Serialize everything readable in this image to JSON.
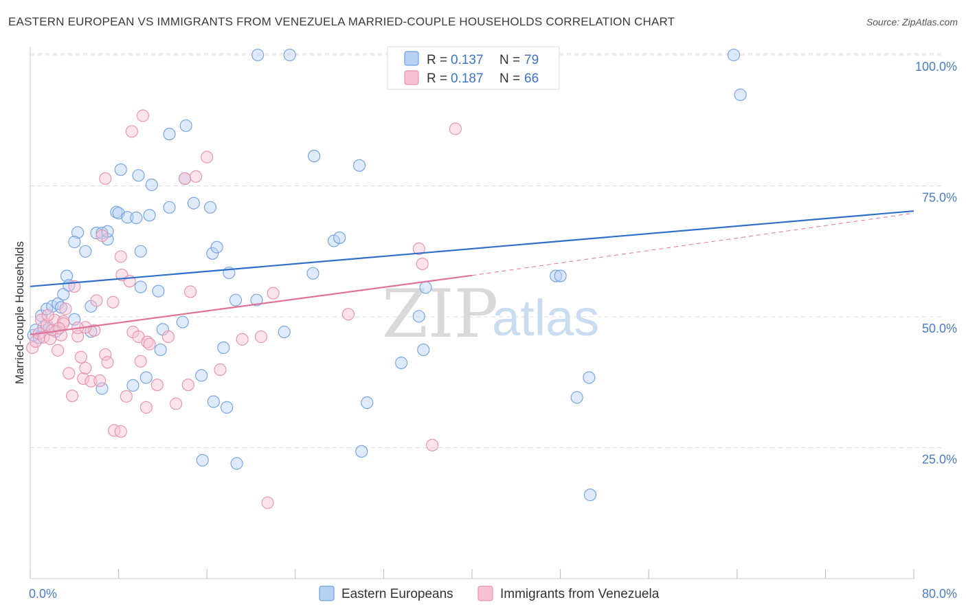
{
  "header": {
    "title": "EASTERN EUROPEAN VS IMMIGRANTS FROM VENEZUELA MARRIED-COUPLE HOUSEHOLDS CORRELATION CHART",
    "source": "Source: ZipAtlas.com"
  },
  "watermark": {
    "zip": "ZIP",
    "atlas": "atlas"
  },
  "colors": {
    "blue": "#6f9fe0",
    "blue_fill": "#b8d0f3",
    "blue_line": "#2f6fc9",
    "pink": "#e890ac",
    "pink_fill": "#f6c2d3",
    "pink_line": "#e0729a",
    "grid": "#dddddd",
    "tick_label": "#4a7cc9"
  },
  "legend": {
    "r_label": "R =",
    "n_label": "N =",
    "series": [
      {
        "r": "0.137",
        "n": "79"
      },
      {
        "r": "0.187",
        "n": "66"
      }
    ]
  },
  "chart_data": {
    "type": "scatter",
    "title": "EASTERN EUROPEAN VS IMMIGRANTS FROM VENEZUELA MARRIED-COUPLE HOUSEHOLDS CORRELATION CHART",
    "xlabel": "",
    "ylabel": "Married-couple Households",
    "xlim": [
      0,
      80
    ],
    "ylim": [
      0,
      102.5
    ],
    "x_tick_labels": [
      "0.0%",
      "80.0%"
    ],
    "y_ticks": [
      25,
      50,
      75,
      100
    ],
    "y_tick_labels": [
      "25.0%",
      "50.0%",
      "75.0%",
      "100.0%"
    ],
    "x_ticks_minor": [
      0,
      8,
      16,
      24,
      32,
      40,
      48,
      56,
      64,
      72,
      80
    ],
    "series": [
      {
        "name": "Eastern Europeans",
        "r": 0.137,
        "n": 79,
        "trend": {
          "x": [
            0,
            80
          ],
          "y": [
            55.8,
            70.2
          ]
        },
        "points": [
          [
            0.3,
            46.5
          ],
          [
            0.5,
            47.5
          ],
          [
            0.8,
            46.0
          ],
          [
            1.0,
            50.2
          ],
          [
            1.2,
            48.0
          ],
          [
            1.5,
            51.5
          ],
          [
            2.0,
            52.0
          ],
          [
            2.5,
            52.5
          ],
          [
            2.8,
            51.8
          ],
          [
            3.0,
            54.3
          ],
          [
            3.3,
            57.8
          ],
          [
            3.5,
            56.0
          ],
          [
            4.0,
            49.5
          ],
          [
            4.3,
            66.1
          ],
          [
            4.0,
            64.3
          ],
          [
            5.0,
            62.5
          ],
          [
            5.5,
            52.0
          ],
          [
            5.5,
            47.2
          ],
          [
            6.0,
            66.0
          ],
          [
            6.5,
            66.0
          ],
          [
            7.0,
            64.8
          ],
          [
            6.5,
            36.3
          ],
          [
            7.0,
            66.3
          ],
          [
            7.8,
            70.0
          ],
          [
            8.0,
            69.8
          ],
          [
            8.2,
            78.1
          ],
          [
            8.8,
            69.0
          ],
          [
            9.3,
            36.9
          ],
          [
            9.6,
            68.9
          ],
          [
            9.8,
            77.0
          ],
          [
            10.0,
            62.5
          ],
          [
            10.0,
            55.7
          ],
          [
            10.5,
            38.4
          ],
          [
            10.8,
            69.4
          ],
          [
            11.0,
            75.2
          ],
          [
            11.6,
            54.9
          ],
          [
            11.8,
            43.7
          ],
          [
            12.0,
            47.6
          ],
          [
            12.6,
            70.9
          ],
          [
            12.6,
            84.9
          ],
          [
            14.0,
            76.4
          ],
          [
            13.8,
            49.0
          ],
          [
            14.1,
            86.5
          ],
          [
            14.8,
            71.7
          ],
          [
            15.5,
            38.8
          ],
          [
            15.6,
            22.6
          ],
          [
            16.3,
            70.9
          ],
          [
            16.5,
            62.1
          ],
          [
            16.9,
            63.3
          ],
          [
            16.6,
            33.8
          ],
          [
            17.5,
            44.1
          ],
          [
            17.8,
            32.7
          ],
          [
            18.0,
            58.4
          ],
          [
            18.7,
            22.0
          ],
          [
            18.6,
            53.2
          ],
          [
            20.5,
            53.2
          ],
          [
            20.6,
            100.0
          ],
          [
            23.0,
            47.1
          ],
          [
            23.5,
            100.0
          ],
          [
            25.7,
            80.7
          ],
          [
            25.6,
            58.3
          ],
          [
            27.5,
            64.5
          ],
          [
            28.0,
            65.1
          ],
          [
            29.8,
            78.9
          ],
          [
            30.0,
            24.3
          ],
          [
            30.5,
            33.6
          ],
          [
            33.6,
            41.2
          ],
          [
            35.2,
            50.1
          ],
          [
            35.6,
            43.7
          ],
          [
            35.8,
            55.6
          ],
          [
            47.6,
            57.8
          ],
          [
            49.5,
            34.6
          ],
          [
            50.6,
            38.4
          ],
          [
            50.7,
            16.0
          ],
          [
            63.7,
            100.0
          ],
          [
            64.3,
            92.4
          ],
          [
            48.0,
            57.8
          ],
          [
            2.3,
            47.2
          ],
          [
            1.7,
            47.8
          ]
        ]
      },
      {
        "name": "Immigrants from Venezuela",
        "r": 0.187,
        "n": 66,
        "trend": {
          "x": [
            0,
            40
          ],
          "y": [
            46.6,
            57.9
          ]
        },
        "trend_dashed": {
          "x": [
            40,
            80
          ],
          "y": [
            57.9,
            69.8
          ]
        },
        "points": [
          [
            0.2,
            44.1
          ],
          [
            0.5,
            45.3
          ],
          [
            0.8,
            46.8
          ],
          [
            1.0,
            49.4
          ],
          [
            1.2,
            46.1
          ],
          [
            1.5,
            48.5
          ],
          [
            1.8,
            45.8
          ],
          [
            2.0,
            47.5
          ],
          [
            2.2,
            49.4
          ],
          [
            2.5,
            43.6
          ],
          [
            2.8,
            46.5
          ],
          [
            3.0,
            49.1
          ],
          [
            3.2,
            51.5
          ],
          [
            3.5,
            39.2
          ],
          [
            3.8,
            34.9
          ],
          [
            4.0,
            55.8
          ],
          [
            4.3,
            46.3
          ],
          [
            4.6,
            42.3
          ],
          [
            4.8,
            38.2
          ],
          [
            5.0,
            40.2
          ],
          [
            5.5,
            37.7
          ],
          [
            5.8,
            47.4
          ],
          [
            6.0,
            53.1
          ],
          [
            6.3,
            37.8
          ],
          [
            6.5,
            65.5
          ],
          [
            6.8,
            42.8
          ],
          [
            7.0,
            41.3
          ],
          [
            6.8,
            76.4
          ],
          [
            7.5,
            52.8
          ],
          [
            7.6,
            28.3
          ],
          [
            8.2,
            28.1
          ],
          [
            8.2,
            61.5
          ],
          [
            8.3,
            58.0
          ],
          [
            8.7,
            34.8
          ],
          [
            9.0,
            56.8
          ],
          [
            9.2,
            85.4
          ],
          [
            9.3,
            47.1
          ],
          [
            9.8,
            46.2
          ],
          [
            10.0,
            41.5
          ],
          [
            10.2,
            88.4
          ],
          [
            10.5,
            32.7
          ],
          [
            10.6,
            45.2
          ],
          [
            10.8,
            44.8
          ],
          [
            11.5,
            37.0
          ],
          [
            12.5,
            46.2
          ],
          [
            13.2,
            33.4
          ],
          [
            14.0,
            76.4
          ],
          [
            14.3,
            37.0
          ],
          [
            14.5,
            54.8
          ],
          [
            15.0,
            76.8
          ],
          [
            16.0,
            80.5
          ],
          [
            17.2,
            39.9
          ],
          [
            19.2,
            45.7
          ],
          [
            20.9,
            46.2
          ],
          [
            21.5,
            14.5
          ],
          [
            22.0,
            54.5
          ],
          [
            28.8,
            50.5
          ],
          [
            35.2,
            63.0
          ],
          [
            35.5,
            60.1
          ],
          [
            36.4,
            25.5
          ],
          [
            38.5,
            85.9
          ],
          [
            5.0,
            48.0
          ],
          [
            3.0,
            48.7
          ],
          [
            1.6,
            50.3
          ],
          [
            2.6,
            47.8
          ],
          [
            4.3,
            47.9
          ]
        ]
      }
    ]
  }
}
